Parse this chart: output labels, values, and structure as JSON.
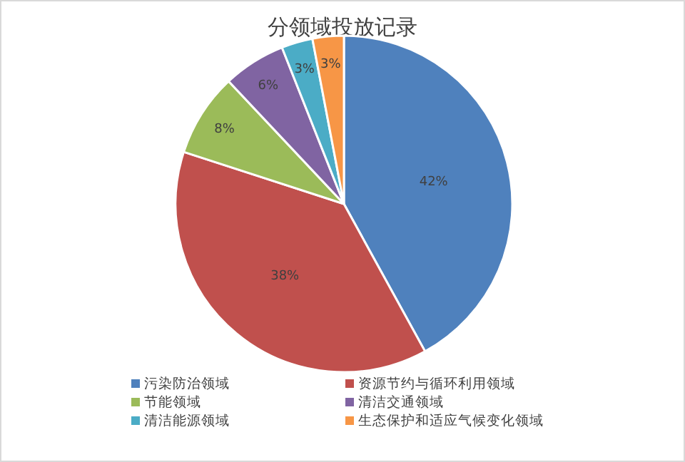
{
  "chart_data": {
    "type": "pie",
    "title": "分领域投放记录",
    "categories": [
      "污染防治领域",
      "资源节约与循环利用领域",
      "节能领域",
      "清洁交通领域",
      "清洁能源领域",
      "生态保护和适应气候变化领域"
    ],
    "values": [
      42,
      38,
      8,
      6,
      3,
      3
    ],
    "value_labels": [
      "42%",
      "38%",
      "8%",
      "6%",
      "3%",
      "3%"
    ],
    "colors": [
      "#4f81bd",
      "#c0504d",
      "#9bbb59",
      "#8064a2",
      "#4bacc6",
      "#f79646"
    ],
    "legend": "bottom"
  }
}
